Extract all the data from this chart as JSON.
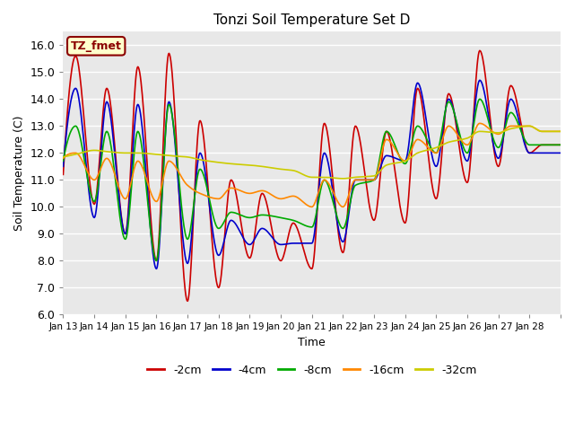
{
  "title": "Tonzi Soil Temperature Set D",
  "xlabel": "Time",
  "ylabel": "Soil Temperature (C)",
  "legend_label": "TZ_fmet",
  "ylim": [
    6.0,
    16.5
  ],
  "yticks": [
    6.0,
    7.0,
    8.0,
    9.0,
    10.0,
    11.0,
    12.0,
    13.0,
    14.0,
    15.0,
    16.0
  ],
  "xtick_labels": [
    "Jan 13",
    "Jan 14",
    "Jan 15",
    "Jan 16",
    "Jan 17",
    "Jan 18",
    "Jan 19",
    "Jan 20",
    "Jan 21",
    "Jan 22",
    "Jan 23",
    "Jan 24",
    "Jan 25",
    "Jan 26",
    "Jan 27",
    "Jan 28"
  ],
  "series_labels": [
    "-2cm",
    "-4cm",
    "-8cm",
    "-16cm",
    "-32cm"
  ],
  "series_colors": [
    "#cc0000",
    "#0000cc",
    "#00aa00",
    "#ff8800",
    "#cccc00"
  ],
  "series_linewidth": 1.2,
  "bg_color": "#e8e8e8",
  "fig_color": "#ffffff",
  "red_data": [
    11.2,
    15.6,
    10.1,
    14.4,
    9.0,
    15.2,
    8.0,
    15.7,
    6.5,
    13.2,
    7.0,
    11.0,
    8.1,
    10.5,
    8.0,
    9.4,
    7.7,
    13.1,
    8.3,
    13.0,
    9.5,
    12.8,
    9.4,
    14.4,
    10.3,
    14.2,
    10.9,
    15.8,
    11.5,
    14.5,
    12.0,
    12.3
  ],
  "blue_data": [
    11.5,
    14.4,
    9.6,
    13.9,
    9.0,
    13.8,
    7.7,
    13.9,
    7.9,
    12.0,
    8.2,
    9.5,
    8.6,
    9.2,
    8.6,
    8.65,
    8.65,
    12.0,
    8.7,
    11.0,
    11.0,
    11.9,
    11.7,
    14.6,
    11.5,
    14.0,
    11.7,
    14.7,
    11.8,
    14.0,
    12.0,
    12.0
  ],
  "green_data": [
    11.7,
    13.0,
    10.2,
    12.8,
    8.8,
    12.8,
    8.0,
    13.8,
    8.8,
    11.4,
    9.2,
    9.8,
    9.6,
    9.7,
    9.6,
    9.5,
    9.25,
    11.0,
    9.2,
    10.8,
    11.0,
    12.8,
    11.6,
    13.0,
    12.0,
    13.9,
    12.0,
    14.0,
    12.2,
    13.5,
    12.3,
    12.3
  ],
  "orange_data": [
    11.8,
    12.0,
    11.0,
    11.8,
    10.3,
    11.7,
    10.2,
    11.7,
    10.8,
    10.5,
    10.3,
    10.7,
    10.5,
    10.6,
    10.3,
    10.4,
    10.0,
    11.0,
    10.0,
    11.0,
    11.0,
    12.5,
    11.7,
    12.5,
    12.0,
    13.0,
    12.3,
    13.1,
    12.7,
    13.0,
    13.0,
    12.8
  ],
  "yellow_data": [
    11.85,
    11.95,
    12.1,
    12.05,
    12.0,
    12.0,
    11.95,
    11.9,
    11.85,
    11.75,
    11.65,
    11.6,
    11.55,
    11.5,
    11.4,
    11.35,
    11.1,
    11.1,
    11.05,
    11.1,
    11.15,
    11.55,
    11.7,
    12.0,
    12.2,
    12.4,
    12.55,
    12.8,
    12.75,
    12.9,
    13.0,
    12.8
  ]
}
